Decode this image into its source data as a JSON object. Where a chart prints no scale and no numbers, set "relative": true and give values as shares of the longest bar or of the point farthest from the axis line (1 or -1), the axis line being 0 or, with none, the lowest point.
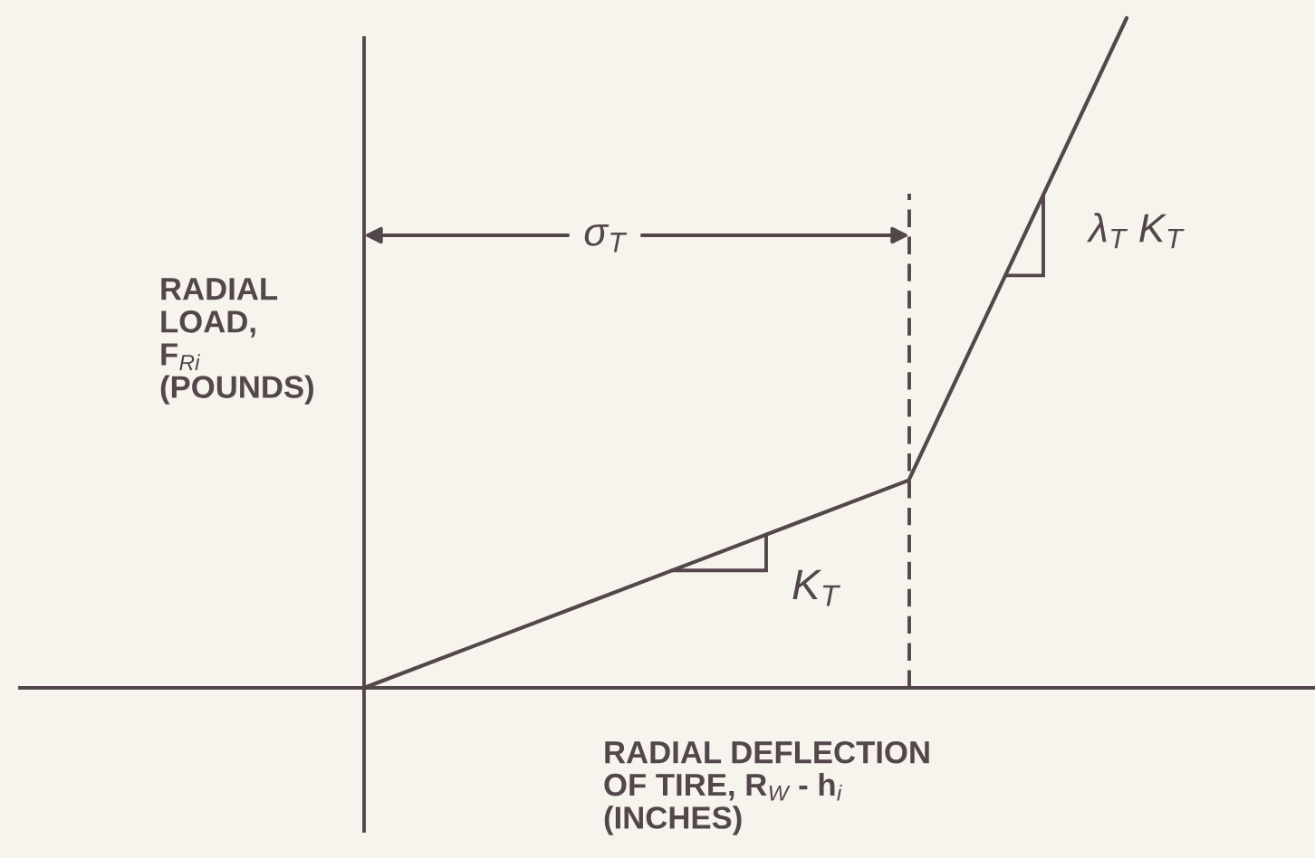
{
  "chart_data": {
    "type": "line",
    "relative": true,
    "categories": [
      null,
      null,
      null,
      null,
      null,
      null,
      null,
      null
    ],
    "values": [
      0,
      0.062,
      0.124,
      0.186,
      0.248,
      0.31,
      0.655,
      1
    ],
    "color": "#54474b",
    "xlabel": "RADIAL DEFLECTION\nOF TIRE, R$_{W}$ - h$_{i}$\n(INCHES)",
    "ylabel": "RADIAL\nLOAD,\nF$_{Ri}$\n(POUNDS)",
    "annotations": [
      "σ$_{T}$",
      "K$_{T}$",
      "λ$_{T}$ K$_{T}$"
    ]
  }
}
